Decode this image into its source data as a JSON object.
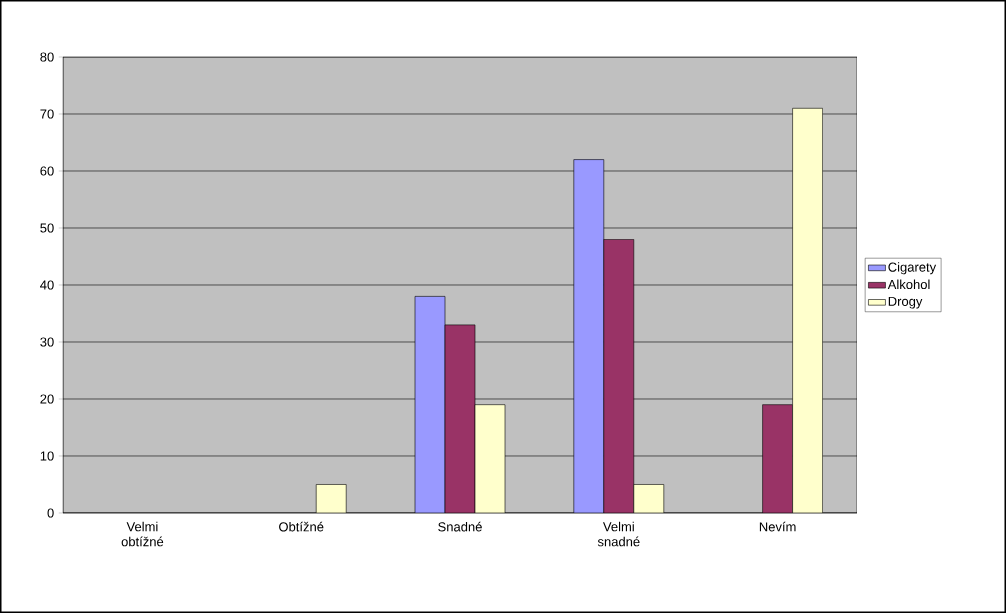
{
  "chart_data": {
    "type": "bar",
    "categories": [
      "Velmi obtížné",
      "Obtížné",
      "Snadné",
      "Velmi snadné",
      "Nevím"
    ],
    "series": [
      {
        "name": "Cigarety",
        "color": "#9999ff",
        "values": [
          0,
          0,
          38,
          62,
          0
        ]
      },
      {
        "name": "Alkohol",
        "color": "#993366",
        "values": [
          0,
          0,
          33,
          48,
          19
        ]
      },
      {
        "name": "Drogy",
        "color": "#ffffcc",
        "values": [
          0,
          5,
          19,
          5,
          71
        ]
      }
    ],
    "ylim": [
      0,
      80
    ],
    "yticks": [
      0,
      10,
      20,
      30,
      40,
      50,
      60,
      70,
      80
    ],
    "grid": "y",
    "legend": "right"
  }
}
